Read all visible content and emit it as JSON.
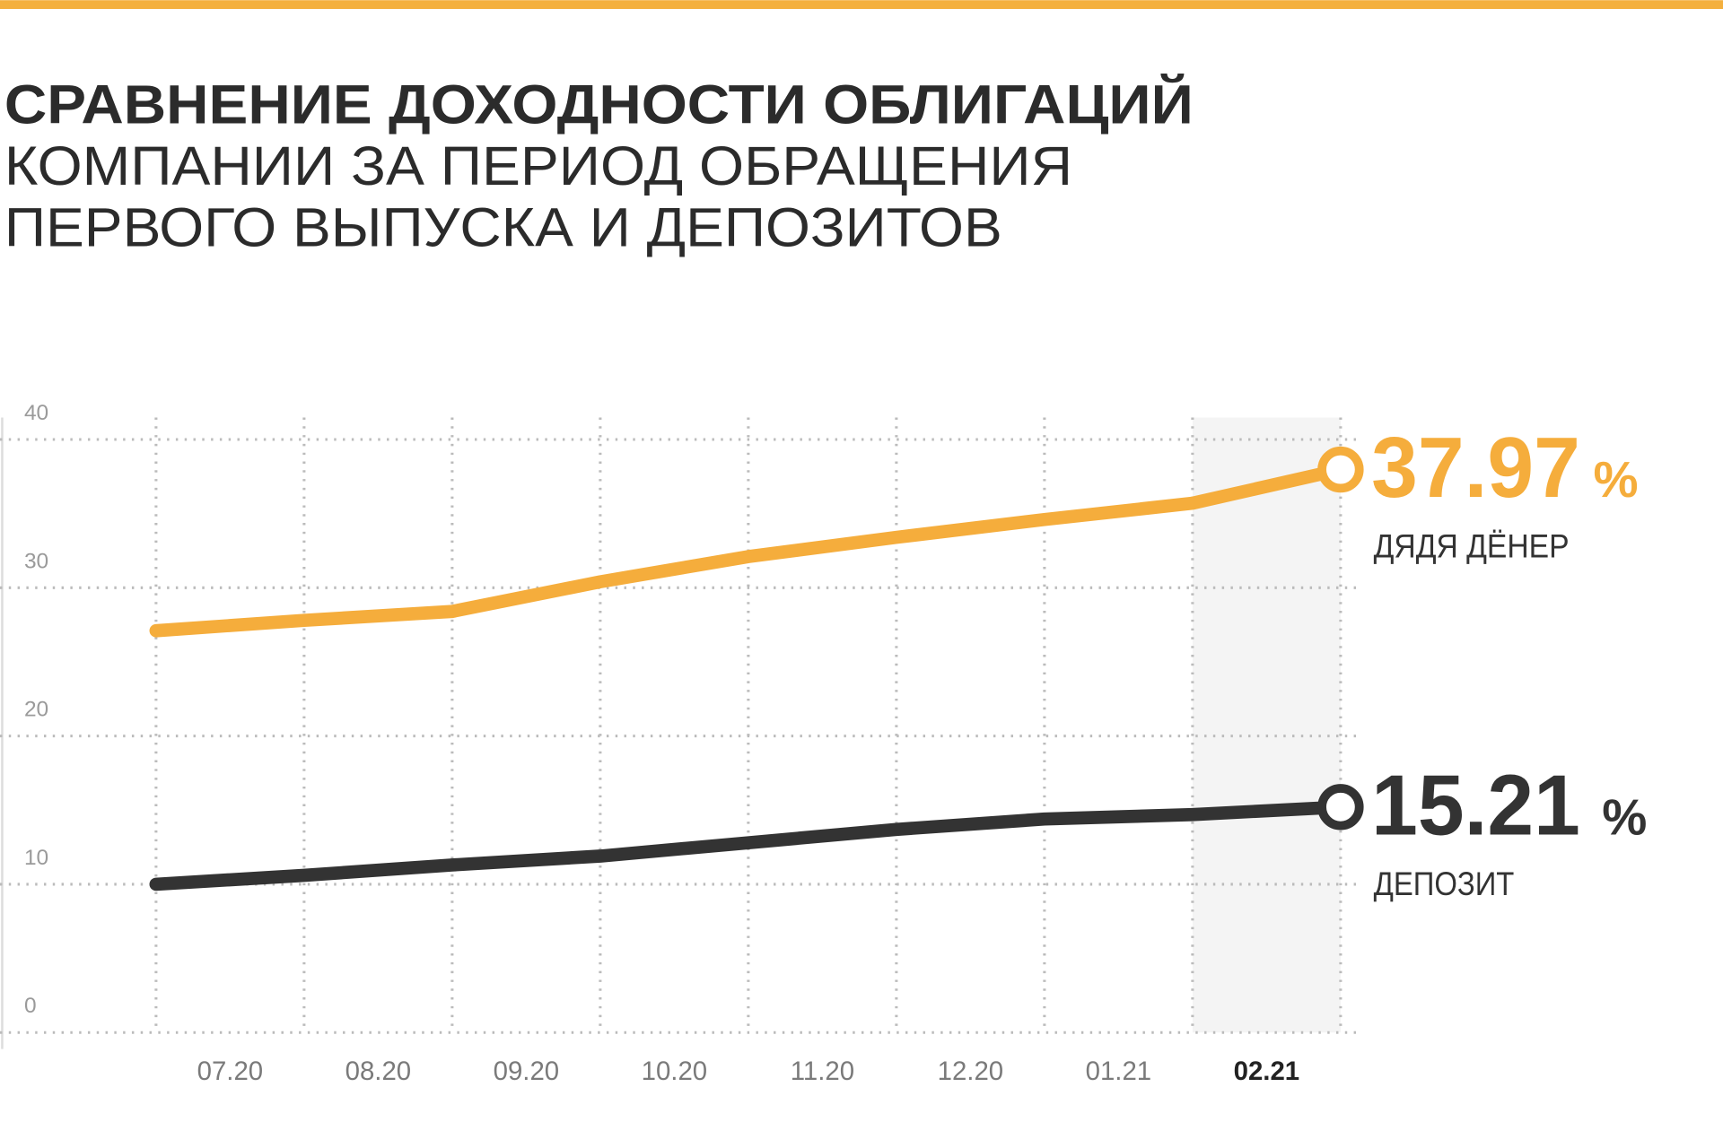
{
  "chart_data": {
    "type": "line",
    "title": "СРАВНЕНИЕ ДОХОДНОСТИ ОБЛИГАЦИЙ",
    "subtitle": [
      "КОМПАНИИ ЗА ПЕРИОД ОБРАЩЕНИЯ",
      "ПЕРВОГО ВЫПУСКА И ДЕПОЗИТОВ"
    ],
    "categories": [
      null,
      "07.20",
      "08.20",
      "09.20",
      "10.20",
      "11.20",
      "12.20",
      "01.21",
      "02.21"
    ],
    "highlight_index": 8,
    "series": [
      {
        "name": "ДЯДЯ ДЁНЕР",
        "color": "#f5ad3c",
        "values": [
          27.1,
          27.8,
          28.4,
          30.4,
          32.1,
          33.4,
          34.6,
          35.7,
          37.97
        ],
        "end_label": "37.97",
        "end_unit": "%"
      },
      {
        "name": "ДЕПОЗИТ",
        "color": "#333333",
        "values": [
          10.0,
          10.6,
          11.3,
          11.9,
          12.8,
          13.7,
          14.4,
          14.7,
          15.21
        ],
        "end_label": "15.21",
        "end_unit": "%"
      }
    ],
    "ylim": [
      0,
      40
    ],
    "yticks": [
      0,
      10,
      20,
      30,
      40
    ],
    "grid": true
  }
}
